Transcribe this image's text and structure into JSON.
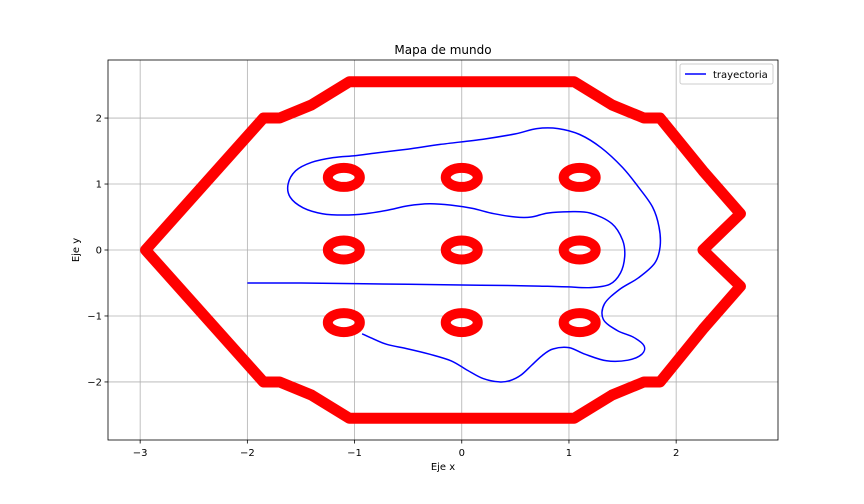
{
  "chart_data": {
    "type": "line",
    "title": "Mapa de mundo",
    "xlabel": "Eje x",
    "ylabel": "Eje y",
    "xlim": [
      -3.3,
      2.95
    ],
    "ylim": [
      -2.88,
      2.88
    ],
    "xticks": [
      -3,
      -2,
      -1,
      0,
      1,
      2
    ],
    "yticks": [
      -2,
      -1,
      0,
      1,
      2
    ],
    "xtick_labels": [
      "−3",
      "−2",
      "−1",
      "0",
      "1",
      "2"
    ],
    "ytick_labels": [
      "−2",
      "−1",
      "0",
      "1",
      "2"
    ],
    "grid": true,
    "legend": {
      "position": "top-right",
      "entries": [
        "trayectoria"
      ]
    },
    "series": [
      {
        "name": "trayectoria",
        "color": "#0000ff",
        "x": [
          -2.0,
          -1.5,
          -1.0,
          -0.5,
          0.0,
          0.5,
          0.8,
          1.0,
          1.2,
          1.38,
          1.48,
          1.52,
          1.5,
          1.4,
          1.2,
          1.0,
          0.8,
          0.65,
          0.5,
          0.3,
          0.1,
          -0.1,
          -0.3,
          -0.5,
          -0.7,
          -0.9,
          -1.1,
          -1.3,
          -1.48,
          -1.6,
          -1.62,
          -1.55,
          -1.4,
          -1.2,
          -1.0,
          -0.8,
          -0.5,
          -0.2,
          0.2,
          0.5,
          0.7,
          0.9,
          1.1,
          1.3,
          1.5,
          1.65,
          1.78,
          1.84,
          1.85,
          1.8,
          1.65,
          1.47,
          1.33,
          1.32,
          1.45,
          1.6,
          1.7,
          1.68,
          1.55,
          1.35,
          1.15,
          1.0,
          0.85,
          0.75,
          0.65,
          0.55,
          0.45,
          0.35,
          0.2,
          0.05,
          -0.1,
          -0.3,
          -0.5,
          -0.7,
          -0.85,
          -0.93
        ],
        "y": [
          -0.5,
          -0.5,
          -0.51,
          -0.52,
          -0.53,
          -0.54,
          -0.55,
          -0.56,
          -0.57,
          -0.52,
          -0.35,
          -0.1,
          0.15,
          0.4,
          0.56,
          0.58,
          0.56,
          0.5,
          0.5,
          0.55,
          0.63,
          0.68,
          0.7,
          0.67,
          0.6,
          0.55,
          0.53,
          0.55,
          0.64,
          0.8,
          1.0,
          1.2,
          1.33,
          1.4,
          1.43,
          1.47,
          1.53,
          1.6,
          1.68,
          1.76,
          1.84,
          1.84,
          1.75,
          1.55,
          1.25,
          0.95,
          0.65,
          0.35,
          0.05,
          -0.2,
          -0.42,
          -0.6,
          -0.82,
          -1.05,
          -1.22,
          -1.32,
          -1.45,
          -1.58,
          -1.67,
          -1.68,
          -1.58,
          -1.48,
          -1.5,
          -1.6,
          -1.75,
          -1.9,
          -1.98,
          -2.0,
          -1.95,
          -1.82,
          -1.68,
          -1.58,
          -1.5,
          -1.43,
          -1.33,
          -1.27
        ]
      }
    ],
    "obstacles": {
      "color": "#ff0000",
      "boundary": {
        "x": [
          -1.05,
          1.05,
          1.4,
          1.7,
          1.85,
          2.25,
          2.6,
          2.25,
          2.6,
          2.25,
          1.85,
          1.7,
          1.4,
          1.05,
          -1.05,
          -1.4,
          -1.7,
          -1.85,
          -2.95,
          -1.85,
          -1.7,
          -1.4,
          -1.05
        ],
        "y": [
          2.55,
          2.55,
          2.2,
          2.0,
          2.0,
          1.2,
          0.55,
          0.0,
          -0.55,
          -1.2,
          -2.0,
          -2.0,
          -2.2,
          -2.55,
          -2.55,
          -2.2,
          -2.0,
          -2.0,
          0.0,
          2.0,
          2.0,
          2.2,
          2.55
        ]
      },
      "rings": [
        {
          "x": -1.1,
          "y": 1.1
        },
        {
          "x": 0.0,
          "y": 1.1
        },
        {
          "x": 1.1,
          "y": 1.1
        },
        {
          "x": -1.1,
          "y": 0.0
        },
        {
          "x": 0.0,
          "y": 0.0
        },
        {
          "x": 1.1,
          "y": 0.0
        },
        {
          "x": -1.1,
          "y": -1.1
        },
        {
          "x": 0.0,
          "y": -1.1
        },
        {
          "x": 1.1,
          "y": -1.1
        }
      ]
    }
  }
}
